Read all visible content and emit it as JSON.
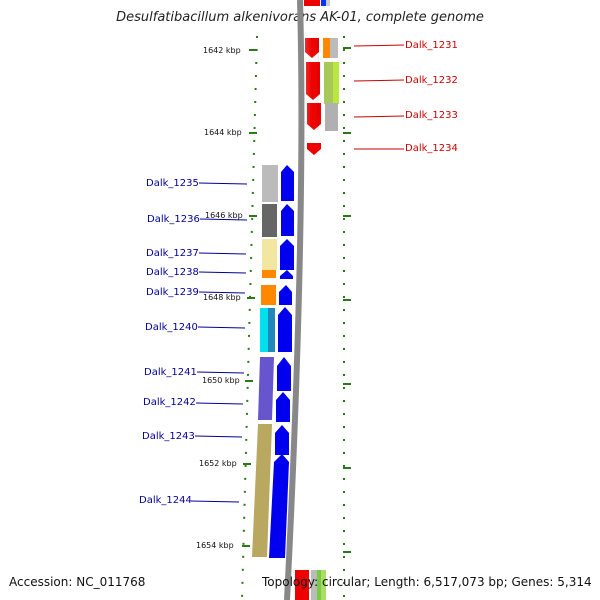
{
  "title": "Desulfatibacillum alkenivorans AK-01, complete genome",
  "accession": "Accession: NC_011768",
  "topology": "Topology: circular; Length: 6,517,073 bp; Genes: 5,314",
  "kbp_labels": [
    "1642 kbp",
    "1644 kbp",
    "1646 kbp",
    "1648 kbp",
    "1650 kbp",
    "1652 kbp",
    "1654 kbp"
  ],
  "genes_right": [
    "Dalk_1231",
    "Dalk_1232",
    "Dalk_1233",
    "Dalk_1234"
  ],
  "genes_left": [
    "Dalk_1235",
    "Dalk_1236",
    "Dalk_1237",
    "Dalk_1238",
    "Dalk_1239",
    "Dalk_1240",
    "Dalk_1241",
    "Dalk_1242",
    "Dalk_1243",
    "Dalk_1244"
  ],
  "colors": {
    "forward_strand": "#0000ee",
    "reverse_strand": "#ee0000",
    "backbone": "#888888",
    "tick": "#2a7a1a",
    "left_label": "#000099",
    "right_label": "#cc0000"
  }
}
